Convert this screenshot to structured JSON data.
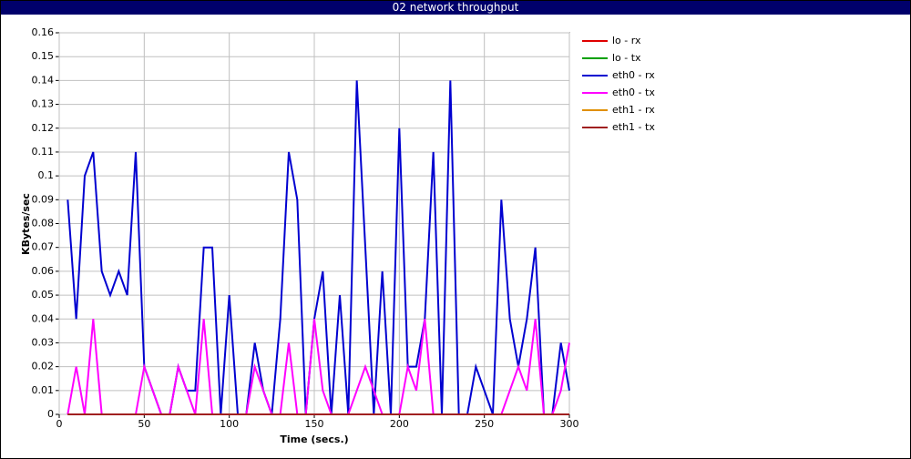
{
  "chart_data": {
    "type": "line",
    "title": "02 network throughput",
    "x_label": "Time (secs.)",
    "y_label": "KBytes/sec",
    "x": [
      5,
      10,
      15,
      20,
      25,
      30,
      35,
      40,
      45,
      50,
      55,
      60,
      65,
      70,
      75,
      80,
      85,
      90,
      95,
      100,
      105,
      110,
      115,
      120,
      125,
      130,
      135,
      140,
      145,
      150,
      155,
      160,
      165,
      170,
      175,
      180,
      185,
      190,
      195,
      200,
      205,
      210,
      215,
      220,
      225,
      230,
      235,
      240,
      245,
      250,
      255,
      260,
      265,
      270,
      275,
      280,
      285,
      290,
      295,
      300
    ],
    "xlim": [
      0,
      300
    ],
    "xticks": [
      0,
      50,
      100,
      150,
      200,
      250,
      300
    ],
    "ylim": [
      0,
      0.16
    ],
    "yticks": [
      0,
      0.01,
      0.02,
      0.03,
      0.04,
      0.05,
      0.06,
      0.07,
      0.08,
      0.09,
      0.1,
      0.11,
      0.12,
      0.13,
      0.14,
      0.15,
      0.16
    ],
    "grid": true,
    "legend": "right",
    "series": [
      {
        "name": "lo - rx",
        "color": "#e00000",
        "values": [
          0,
          0,
          0,
          0,
          0,
          0,
          0,
          0,
          0,
          0,
          0,
          0,
          0,
          0,
          0,
          0,
          0,
          0,
          0,
          0,
          0,
          0,
          0,
          0,
          0,
          0,
          0,
          0,
          0,
          0,
          0,
          0,
          0,
          0,
          0,
          0,
          0,
          0,
          0,
          0,
          0,
          0,
          0,
          0,
          0,
          0,
          0,
          0,
          0,
          0,
          0,
          0,
          0,
          0,
          0,
          0,
          0,
          0,
          0,
          0
        ]
      },
      {
        "name": "lo - tx",
        "color": "#00a000",
        "values": [
          0,
          0,
          0,
          0,
          0,
          0,
          0,
          0,
          0,
          0,
          0,
          0,
          0,
          0,
          0,
          0,
          0,
          0,
          0,
          0,
          0,
          0,
          0,
          0,
          0,
          0,
          0,
          0,
          0,
          0,
          0,
          0,
          0,
          0,
          0,
          0,
          0,
          0,
          0,
          0,
          0,
          0,
          0,
          0,
          0,
          0,
          0,
          0,
          0,
          0,
          0,
          0,
          0,
          0,
          0,
          0,
          0,
          0,
          0,
          0
        ]
      },
      {
        "name": "eth0 - rx",
        "color": "#0000d0",
        "values": [
          0.09,
          0.04,
          0.1,
          0.11,
          0.06,
          0.05,
          0.06,
          0.05,
          0.11,
          0.02,
          0.01,
          0,
          0,
          0.02,
          0.01,
          0.01,
          0.07,
          0.07,
          0,
          0.05,
          0,
          0,
          0.03,
          0.01,
          0,
          0.04,
          0.11,
          0.09,
          0,
          0.04,
          0.06,
          0,
          0.05,
          0,
          0.14,
          0.07,
          0,
          0.06,
          0,
          0.12,
          0.02,
          0.02,
          0.04,
          0.11,
          0,
          0.14,
          0,
          0,
          0.02,
          0.01,
          0,
          0.09,
          0.04,
          0.02,
          0.04,
          0.07,
          0,
          0,
          0.03,
          0.01
        ]
      },
      {
        "name": "eth0 - tx",
        "color": "#ff00ff",
        "values": [
          0,
          0.02,
          0,
          0.04,
          0,
          0,
          0,
          0,
          0,
          0.02,
          0.01,
          0,
          0,
          0.02,
          0.01,
          0,
          0.04,
          0,
          0,
          0,
          0,
          0,
          0.02,
          0.01,
          0,
          0,
          0.03,
          0,
          0,
          0.04,
          0.01,
          0,
          0,
          0,
          0.01,
          0.02,
          0.01,
          0,
          0,
          0,
          0.02,
          0.01,
          0.04,
          0,
          0,
          0,
          0,
          0,
          0,
          0,
          0,
          0,
          0.01,
          0.02,
          0.01,
          0.04,
          0,
          0,
          0.01,
          0.03
        ]
      },
      {
        "name": "eth1 - rx",
        "color": "#e09000",
        "values": [
          0,
          0,
          0,
          0,
          0,
          0,
          0,
          0,
          0,
          0,
          0,
          0,
          0,
          0,
          0,
          0,
          0,
          0,
          0,
          0,
          0,
          0,
          0,
          0,
          0,
          0,
          0,
          0,
          0,
          0,
          0,
          0,
          0,
          0,
          0,
          0,
          0,
          0,
          0,
          0,
          0,
          0,
          0,
          0,
          0,
          0,
          0,
          0,
          0,
          0,
          0,
          0,
          0,
          0,
          0,
          0,
          0,
          0,
          0,
          0
        ]
      },
      {
        "name": "eth1 - tx",
        "color": "#a02020",
        "values": [
          0,
          0,
          0,
          0,
          0,
          0,
          0,
          0,
          0,
          0,
          0,
          0,
          0,
          0,
          0,
          0,
          0,
          0,
          0,
          0,
          0,
          0,
          0,
          0,
          0,
          0,
          0,
          0,
          0,
          0,
          0,
          0,
          0,
          0,
          0,
          0,
          0,
          0,
          0,
          0,
          0,
          0,
          0,
          0,
          0,
          0,
          0,
          0,
          0,
          0,
          0,
          0,
          0,
          0,
          0,
          0,
          0,
          0,
          0,
          0
        ]
      }
    ]
  }
}
